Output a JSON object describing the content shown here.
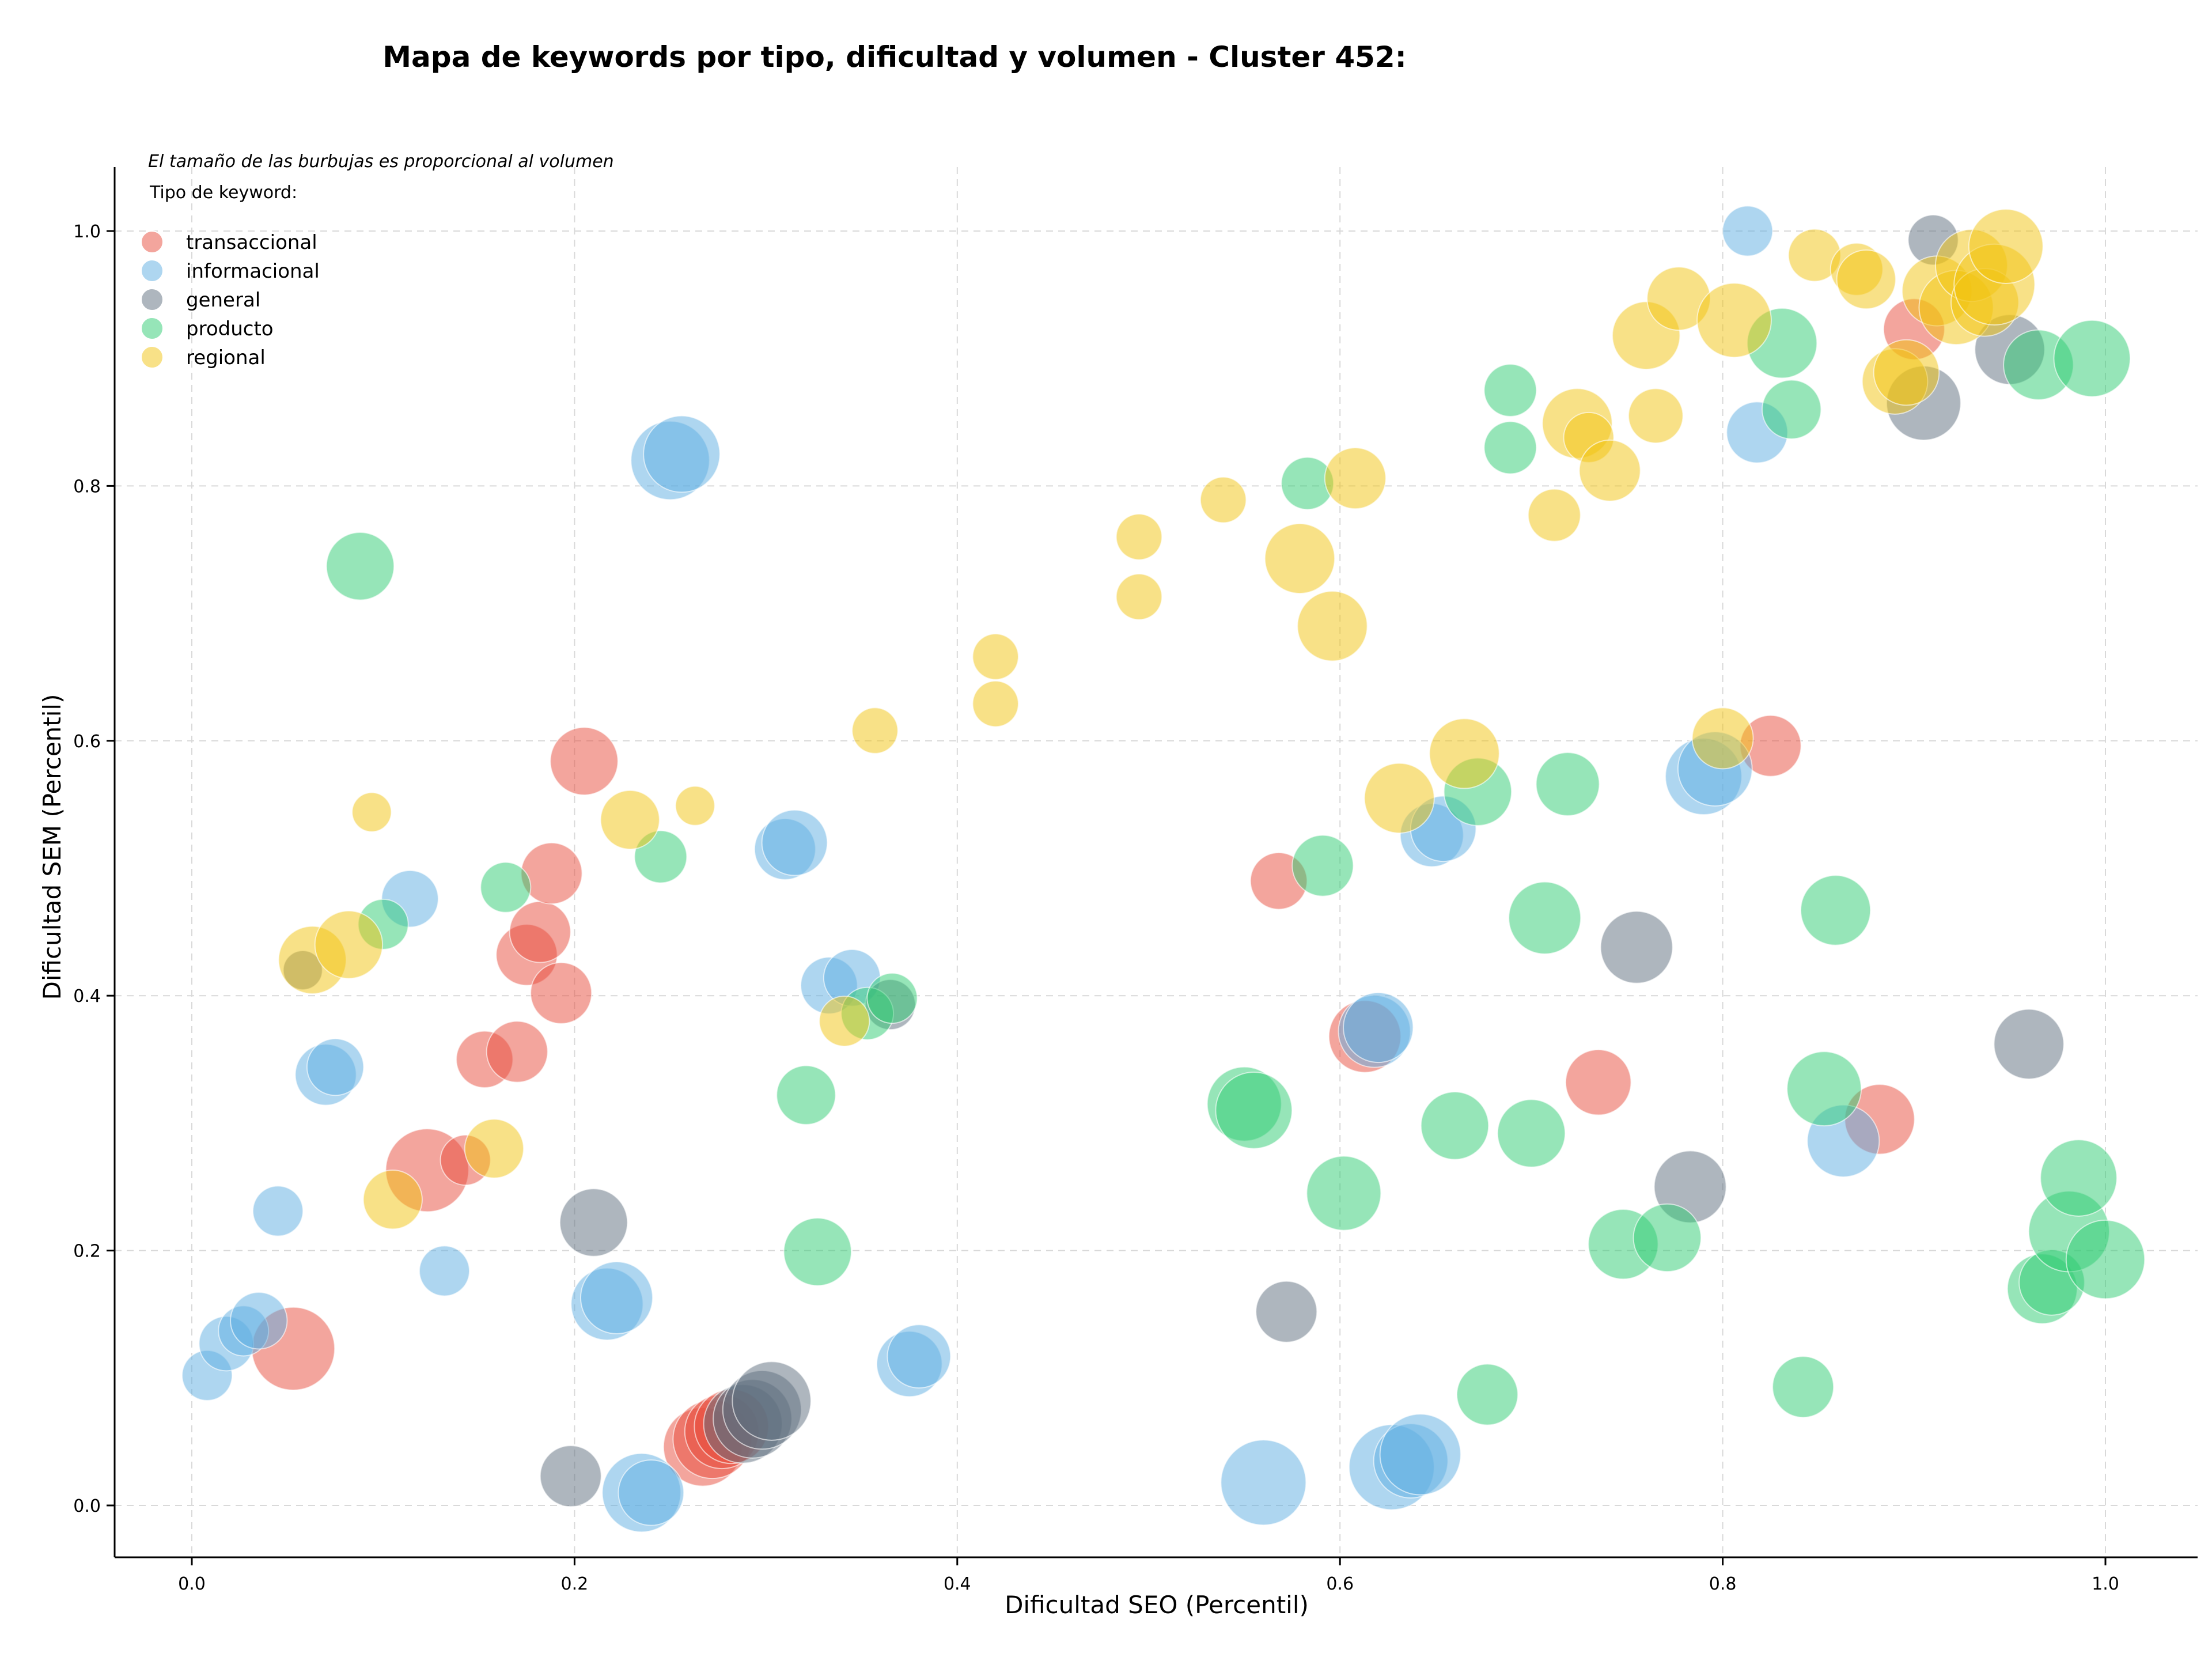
{
  "chart_data": {
    "type": "scatter",
    "title": "Mapa de keywords por tipo, dificultad y volumen - Cluster 452:",
    "xlabel": "Dificultad SEO (Percentil)",
    "ylabel": "Dificultad SEM (Percentil)",
    "xlim": [
      -0.04,
      1.05
    ],
    "ylim": [
      -0.04,
      1.05
    ],
    "xticks": [
      0.0,
      0.2,
      0.4,
      0.6,
      0.8,
      1.0
    ],
    "yticks": [
      0.0,
      0.2,
      0.4,
      0.6,
      0.8,
      1.0
    ],
    "xtick_labels": [
      "0.0",
      "0.2",
      "0.4",
      "0.6",
      "0.8",
      "1.0"
    ],
    "ytick_labels": [
      "0.0",
      "0.2",
      "0.4",
      "0.6",
      "0.8",
      "1.0"
    ],
    "grid": true,
    "legend_title": "Tipo de keyword:",
    "legend_placement": "top-left",
    "note": "El tamaño de las burbujas es proporcional al volumen",
    "bubble_size_encodes": "volumen",
    "series": [
      {
        "name": "transaccional",
        "color": "#e74c3c",
        "points": [
          [
            0.053,
            0.123,
            3
          ],
          [
            0.123,
            0.263,
            3
          ],
          [
            0.143,
            0.271,
            1.5
          ],
          [
            0.153,
            0.35,
            1.8
          ],
          [
            0.17,
            0.356,
            2
          ],
          [
            0.175,
            0.432,
            2
          ],
          [
            0.182,
            0.45,
            2
          ],
          [
            0.188,
            0.496,
            2
          ],
          [
            0.193,
            0.402,
            2
          ],
          [
            0.205,
            0.584,
            2.3
          ],
          [
            0.267,
            0.046,
            2.8
          ],
          [
            0.272,
            0.052,
            2.8
          ],
          [
            0.277,
            0.058,
            2.6
          ],
          [
            0.282,
            0.062,
            2.6
          ],
          [
            0.568,
            0.49,
            1.8
          ],
          [
            0.613,
            0.368,
            2.5
          ],
          [
            0.735,
            0.332,
            2.2
          ],
          [
            0.825,
            0.596,
            2
          ],
          [
            0.882,
            0.303,
            2.4
          ],
          [
            0.9,
            0.923,
            2
          ]
        ]
      },
      {
        "name": "informacional",
        "color": "#5dade2",
        "points": [
          [
            0.008,
            0.102,
            1.5
          ],
          [
            0.018,
            0.127,
            1.7
          ],
          [
            0.027,
            0.137,
            1.5
          ],
          [
            0.035,
            0.145,
            1.8
          ],
          [
            0.045,
            0.231,
            1.5
          ],
          [
            0.07,
            0.338,
            2
          ],
          [
            0.075,
            0.344,
            1.8
          ],
          [
            0.114,
            0.476,
            1.8
          ],
          [
            0.132,
            0.184,
            1.5
          ],
          [
            0.217,
            0.158,
            2.5
          ],
          [
            0.222,
            0.163,
            2.5
          ],
          [
            0.235,
            0.01,
            2.8
          ],
          [
            0.24,
            0.01,
            2.2
          ],
          [
            0.25,
            0.82,
            2.8
          ],
          [
            0.256,
            0.825,
            2.7
          ],
          [
            0.31,
            0.515,
            2
          ],
          [
            0.315,
            0.52,
            2.2
          ],
          [
            0.333,
            0.408,
            1.8
          ],
          [
            0.345,
            0.414,
            1.8
          ],
          [
            0.375,
            0.111,
            2.2
          ],
          [
            0.38,
            0.117,
            2.1
          ],
          [
            0.56,
            0.018,
            3.1
          ],
          [
            0.618,
            0.372,
            2.5
          ],
          [
            0.62,
            0.375,
            2.4
          ],
          [
            0.627,
            0.03,
            3.1
          ],
          [
            0.637,
            0.035,
            2.6
          ],
          [
            0.642,
            0.04,
            2.9
          ],
          [
            0.648,
            0.526,
            2.1
          ],
          [
            0.654,
            0.531,
            2.2
          ],
          [
            0.79,
            0.572,
            2.7
          ],
          [
            0.796,
            0.578,
            2.6
          ],
          [
            0.813,
            1.0,
            1.5
          ],
          [
            0.818,
            0.842,
            2
          ],
          [
            0.863,
            0.286,
            2.5
          ]
        ]
      },
      {
        "name": "general",
        "color": "#5d6d7e",
        "points": [
          [
            0.058,
            0.42,
            1
          ],
          [
            0.198,
            0.023,
            2
          ],
          [
            0.21,
            0.222,
            2.3
          ],
          [
            0.288,
            0.064,
            2.8
          ],
          [
            0.293,
            0.068,
            2.8
          ],
          [
            0.298,
            0.075,
            2.8
          ],
          [
            0.303,
            0.082,
            2.8
          ],
          [
            0.365,
            0.393,
            1.5
          ],
          [
            0.572,
            0.152,
            2
          ],
          [
            0.755,
            0.438,
            2.5
          ],
          [
            0.783,
            0.25,
            2.5
          ],
          [
            0.905,
            0.865,
            2.6
          ],
          [
            0.91,
            0.993,
            1.5
          ],
          [
            0.95,
            0.907,
            2.4
          ],
          [
            0.96,
            0.362,
            2.4
          ]
        ]
      },
      {
        "name": "producto",
        "color": "#2ecc71",
        "points": [
          [
            0.088,
            0.737,
            2.3
          ],
          [
            0.1,
            0.456,
            1.5
          ],
          [
            0.164,
            0.485,
            1.5
          ],
          [
            0.245,
            0.509,
            1.6
          ],
          [
            0.321,
            0.322,
            1.9
          ],
          [
            0.327,
            0.199,
            2.3
          ],
          [
            0.353,
            0.386,
            1.6
          ],
          [
            0.366,
            0.398,
            1.5
          ],
          [
            0.55,
            0.315,
            2.6
          ],
          [
            0.555,
            0.31,
            2.7
          ],
          [
            0.583,
            0.802,
            1.6
          ],
          [
            0.591,
            0.502,
            2
          ],
          [
            0.602,
            0.245,
            2.6
          ],
          [
            0.66,
            0.298,
            2.3
          ],
          [
            0.672,
            0.56,
            2.3
          ],
          [
            0.677,
            0.087,
            2
          ],
          [
            0.689,
            0.875,
            1.6
          ],
          [
            0.689,
            0.83,
            1.6
          ],
          [
            0.7,
            0.292,
            2.3
          ],
          [
            0.707,
            0.461,
            2.5
          ],
          [
            0.719,
            0.566,
            2.1
          ],
          [
            0.748,
            0.205,
            2.4
          ],
          [
            0.771,
            0.21,
            2.3
          ],
          [
            0.831,
            0.912,
            2.4
          ],
          [
            0.836,
            0.86,
            1.9
          ],
          [
            0.842,
            0.093,
            2
          ],
          [
            0.853,
            0.327,
            2.6
          ],
          [
            0.859,
            0.467,
            2.4
          ],
          [
            0.965,
            0.895,
            2.4
          ],
          [
            0.967,
            0.17,
            2.4
          ],
          [
            0.972,
            0.175,
            2.2
          ],
          [
            0.981,
            0.215,
            2.9
          ],
          [
            0.986,
            0.257,
            2.7
          ],
          [
            0.993,
            0.9,
            2.7
          ],
          [
            1.0,
            0.193,
            2.8
          ]
        ]
      },
      {
        "name": "regional",
        "color": "#f1c40f",
        "points": [
          [
            0.063,
            0.428,
            2.3
          ],
          [
            0.082,
            0.44,
            2.3
          ],
          [
            0.094,
            0.544,
            1
          ],
          [
            0.105,
            0.24,
            1.9
          ],
          [
            0.158,
            0.28,
            1.9
          ],
          [
            0.229,
            0.538,
            1.9
          ],
          [
            0.263,
            0.549,
            1
          ],
          [
            0.341,
            0.38,
            1.5
          ],
          [
            0.357,
            0.608,
            1.3
          ],
          [
            0.42,
            0.666,
            1.3
          ],
          [
            0.42,
            0.629,
            1.3
          ],
          [
            0.495,
            0.76,
            1.3
          ],
          [
            0.495,
            0.713,
            1.3
          ],
          [
            0.539,
            0.789,
            1.3
          ],
          [
            0.579,
            0.743,
            2.4
          ],
          [
            0.596,
            0.69,
            2.4
          ],
          [
            0.608,
            0.806,
            2
          ],
          [
            0.631,
            0.555,
            2.4
          ],
          [
            0.665,
            0.59,
            2.4
          ],
          [
            0.712,
            0.777,
            1.6
          ],
          [
            0.724,
            0.849,
            2.4
          ],
          [
            0.73,
            0.838,
            1.5
          ],
          [
            0.741,
            0.812,
            2
          ],
          [
            0.76,
            0.918,
            2.3
          ],
          [
            0.765,
            0.855,
            1.7
          ],
          [
            0.777,
            0.947,
            2.1
          ],
          [
            0.8,
            0.602,
            2
          ],
          [
            0.806,
            0.93,
            2.6
          ],
          [
            0.848,
            0.981,
            1.6
          ],
          [
            0.87,
            0.97,
            1.6
          ],
          [
            0.875,
            0.962,
            1.9
          ],
          [
            0.89,
            0.882,
            2.2
          ],
          [
            0.896,
            0.889,
            2.2
          ],
          [
            0.912,
            0.953,
            2.4
          ],
          [
            0.922,
            0.94,
            2.6
          ],
          [
            0.93,
            0.973,
            2.5
          ],
          [
            0.937,
            0.944,
            2.3
          ],
          [
            0.942,
            0.958,
            2.9
          ],
          [
            0.948,
            0.988,
            2.6
          ]
        ]
      }
    ]
  }
}
